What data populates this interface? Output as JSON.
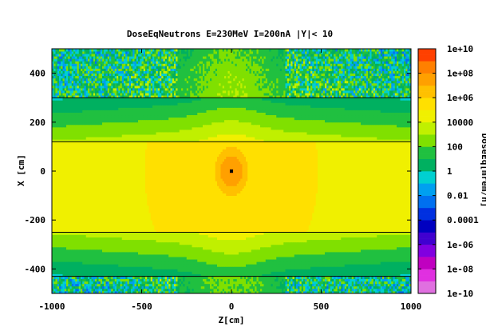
{
  "chart_data": {
    "type": "heatmap",
    "title": "DoseEqNeutrons E=230MeV I=200nA |Y|< 10",
    "xlabel": "Z[cm]",
    "ylabel": "X [cm]",
    "colorbar_label": "DoseEq[mrem/h]",
    "xlim": [
      -1000,
      1000
    ],
    "ylim": [
      -500,
      500
    ],
    "x_ticks": [
      -1000,
      -500,
      0,
      500,
      1000
    ],
    "x_tick_labels": [
      "-1000",
      "-500",
      "0",
      "500",
      "1000"
    ],
    "y_ticks": [
      -400,
      -200,
      0,
      200,
      400
    ],
    "y_tick_labels": [
      "-400",
      "-200",
      "0",
      "200",
      "400"
    ],
    "colorbar_scale": "log",
    "colorbar_range": [
      1e-10,
      10000000000.0
    ],
    "colorbar_ticks": [
      10000000000.0,
      100000000.0,
      1000000.0,
      10000.0,
      100,
      1,
      0.01,
      0.0001,
      1e-06,
      1e-08,
      1e-10
    ],
    "colorbar_tick_labels": [
      "1e+10",
      "1e+08",
      "1e+06",
      "10000",
      "100",
      "1",
      "0.01",
      "0.0001",
      "1e-06",
      "1e-08",
      "1e-10"
    ],
    "colormap": [
      "#ffffff",
      "#f0a0f0",
      "#e070e0",
      "#e030e0",
      "#c000c0",
      "#8000e0",
      "#4000d0",
      "#0000c0",
      "#0030e0",
      "#0070f0",
      "#00a0f0",
      "#00d0d0",
      "#00b060",
      "#20c040",
      "#80e000",
      "#c0f000",
      "#f0f000",
      "#ffe000",
      "#ffc000",
      "#ffa000",
      "#ff8000",
      "#ff4000",
      "#f00000",
      "#c00000",
      "#800000",
      "#000000"
    ],
    "boundaries_x": [
      300,
      120,
      -250,
      -430
    ],
    "source": {
      "z": 0,
      "x": 0,
      "log10_dose": 9
    }
  }
}
